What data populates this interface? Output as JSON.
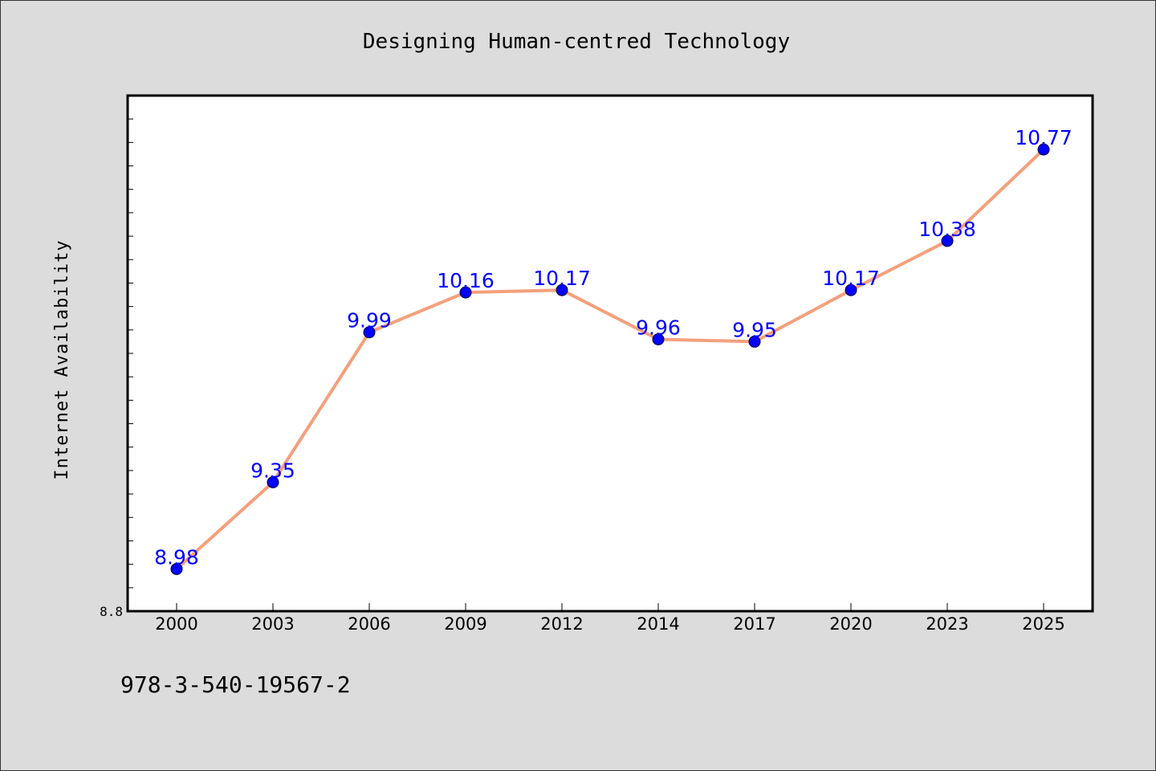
{
  "chart_data": {
    "type": "line",
    "title": "Designing Human-centred Technology",
    "xlabel": "",
    "ylabel": "Internet Availability",
    "categories": [
      "2000",
      "2003",
      "2006",
      "2009",
      "2012",
      "2014",
      "2017",
      "2020",
      "2023",
      "2025"
    ],
    "series": [
      {
        "values": [
          8.98,
          9.35,
          9.99,
          10.16,
          10.17,
          9.96,
          9.95,
          10.17,
          10.38,
          10.77
        ]
      }
    ],
    "data_labels": [
      "8.98",
      "9.35",
      "9.99",
      "10.16",
      "10.17",
      "9.96",
      "9.95",
      "10.17",
      "10.38",
      "10.77"
    ],
    "ytick_labels": [
      "8.8"
    ],
    "ylim": [
      8.8,
      11.0
    ],
    "grid": false,
    "line_color": "#f4a07c",
    "marker_color": "#0000ff",
    "label_color": "#0000ff"
  },
  "footer_text": "978-3-540-19567-2"
}
